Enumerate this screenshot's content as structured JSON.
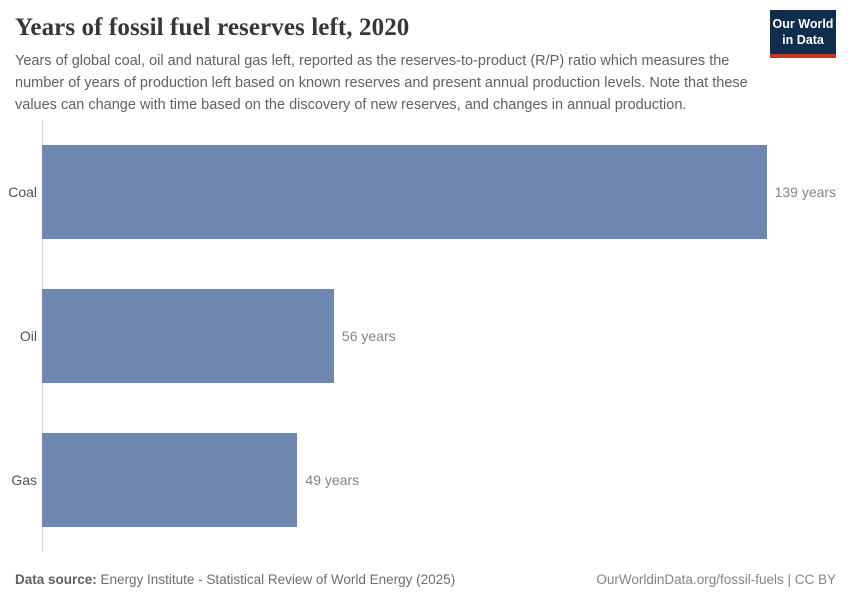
{
  "header": {
    "title": "Years of fossil fuel reserves left, 2020",
    "subtitle": "Years of global coal, oil and natural gas left, reported as the reserves-to-product (R/P) ratio which measures the number of years of production left based on known reserves and present annual production levels. Note that these values can change with time based on the discovery of new reserves, and changes in annual production.",
    "logo": {
      "line1": "Our World",
      "line2": "in Data",
      "bg_color": "#102d4e",
      "accent_color": "#cd3232",
      "text_color": "#ffffff"
    }
  },
  "chart_data": {
    "type": "bar",
    "orientation": "horizontal",
    "title": "Years of fossil fuel reserves left, 2020",
    "categories": [
      "Coal",
      "Oil",
      "Gas"
    ],
    "values": [
      139,
      56,
      49
    ],
    "value_labels": [
      "139 years",
      "56 years",
      "49 years"
    ],
    "unit": "years",
    "xlabel": "",
    "ylabel": "",
    "xlim": [
      0,
      155
    ],
    "grid": false,
    "legend": false,
    "bar_color": "#6e88b1",
    "axis_color": "#dcdcdc"
  },
  "footer": {
    "datasource_label": "Data source:",
    "datasource_text": " Energy Institute - Statistical Review of World Energy (2025)",
    "rights": "OurWorldinData.org/fossil-fuels | CC BY"
  }
}
